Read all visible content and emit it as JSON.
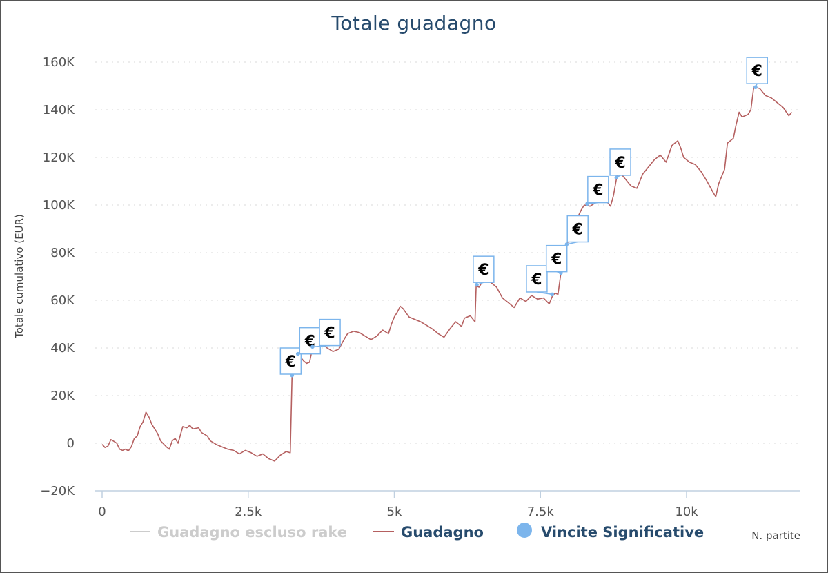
{
  "chart_data": {
    "type": "line",
    "title": "Totale guadagno",
    "ylabel": "Totale cumulativo (EUR)",
    "xlabel": "N. partite",
    "xlim": [
      0,
      11800
    ],
    "ylim": [
      -20000,
      160000
    ],
    "x_ticks": [
      {
        "value": 0,
        "label": "0"
      },
      {
        "value": 2500,
        "label": "2.5k"
      },
      {
        "value": 5000,
        "label": "5k"
      },
      {
        "value": 7500,
        "label": "7.5k"
      },
      {
        "value": 10000,
        "label": "10k"
      }
    ],
    "y_ticks": [
      {
        "value": -20000,
        "label": "−20K"
      },
      {
        "value": 0,
        "label": "0"
      },
      {
        "value": 20000,
        "label": "20K"
      },
      {
        "value": 40000,
        "label": "40K"
      },
      {
        "value": 60000,
        "label": "60K"
      },
      {
        "value": 80000,
        "label": "80K"
      },
      {
        "value": 100000,
        "label": "100K"
      },
      {
        "value": 120000,
        "label": "120K"
      },
      {
        "value": 140000,
        "label": "140K"
      },
      {
        "value": 160000,
        "label": "160K"
      }
    ],
    "grid": true,
    "legend_position": "bottom",
    "series": [
      {
        "name": "Guadagno escluso rake",
        "color": "#cccccc",
        "hidden": true,
        "points": []
      },
      {
        "name": "Guadagno",
        "color": "#b56060",
        "points": [
          [
            0,
            -500
          ],
          [
            50,
            -1800
          ],
          [
            100,
            -1200
          ],
          [
            150,
            1500
          ],
          [
            200,
            800
          ],
          [
            250,
            0
          ],
          [
            300,
            -2500
          ],
          [
            350,
            -3000
          ],
          [
            400,
            -2500
          ],
          [
            450,
            -3200
          ],
          [
            500,
            -1500
          ],
          [
            550,
            2000
          ],
          [
            600,
            3000
          ],
          [
            650,
            7000
          ],
          [
            700,
            9000
          ],
          [
            750,
            13000
          ],
          [
            800,
            11000
          ],
          [
            850,
            8000
          ],
          [
            900,
            6000
          ],
          [
            950,
            4000
          ],
          [
            1000,
            1000
          ],
          [
            1100,
            -1500
          ],
          [
            1150,
            -2500
          ],
          [
            1200,
            1000
          ],
          [
            1250,
            2000
          ],
          [
            1300,
            0
          ],
          [
            1380,
            7000
          ],
          [
            1450,
            6500
          ],
          [
            1500,
            7500
          ],
          [
            1550,
            6000
          ],
          [
            1650,
            6500
          ],
          [
            1700,
            4500
          ],
          [
            1800,
            3000
          ],
          [
            1850,
            1000
          ],
          [
            1950,
            -500
          ],
          [
            2050,
            -1500
          ],
          [
            2150,
            -2500
          ],
          [
            2250,
            -3000
          ],
          [
            2350,
            -4500
          ],
          [
            2450,
            -3000
          ],
          [
            2550,
            -4000
          ],
          [
            2650,
            -5500
          ],
          [
            2750,
            -4500
          ],
          [
            2850,
            -6500
          ],
          [
            2950,
            -7500
          ],
          [
            3050,
            -5000
          ],
          [
            3150,
            -3500
          ],
          [
            3220,
            -4000
          ],
          [
            3250,
            28500
          ],
          [
            3300,
            31000
          ],
          [
            3350,
            37500
          ],
          [
            3400,
            36000
          ],
          [
            3450,
            34500
          ],
          [
            3500,
            33500
          ],
          [
            3550,
            34000
          ],
          [
            3600,
            40000
          ],
          [
            3650,
            41500
          ],
          [
            3700,
            42500
          ],
          [
            3750,
            44000
          ],
          [
            3800,
            41000
          ],
          [
            3850,
            40000
          ],
          [
            3950,
            38500
          ],
          [
            4050,
            39500
          ],
          [
            4150,
            44000
          ],
          [
            4200,
            46000
          ],
          [
            4300,
            47000
          ],
          [
            4400,
            46500
          ],
          [
            4500,
            45000
          ],
          [
            4600,
            43500
          ],
          [
            4700,
            45000
          ],
          [
            4800,
            47500
          ],
          [
            4900,
            46000
          ],
          [
            4950,
            50000
          ],
          [
            5000,
            53000
          ],
          [
            5050,
            55000
          ],
          [
            5100,
            57500
          ],
          [
            5150,
            56500
          ],
          [
            5250,
            53000
          ],
          [
            5350,
            52000
          ],
          [
            5450,
            51000
          ],
          [
            5550,
            49500
          ],
          [
            5650,
            48000
          ],
          [
            5750,
            46000
          ],
          [
            5850,
            44500
          ],
          [
            5950,
            48000
          ],
          [
            6050,
            51000
          ],
          [
            6150,
            49000
          ],
          [
            6200,
            52500
          ],
          [
            6300,
            53500
          ],
          [
            6380,
            51000
          ],
          [
            6400,
            66000
          ],
          [
            6450,
            65500
          ],
          [
            6500,
            67500
          ],
          [
            6550,
            69000
          ],
          [
            6650,
            67500
          ],
          [
            6750,
            65500
          ],
          [
            6850,
            61000
          ],
          [
            6950,
            59000
          ],
          [
            7050,
            57000
          ],
          [
            7150,
            61000
          ],
          [
            7250,
            59500
          ],
          [
            7350,
            62000
          ],
          [
            7450,
            60500
          ],
          [
            7550,
            61000
          ],
          [
            7650,
            58500
          ],
          [
            7700,
            61500
          ],
          [
            7750,
            63000
          ],
          [
            7800,
            62500
          ],
          [
            7850,
            71500
          ],
          [
            7900,
            72500
          ],
          [
            7950,
            82000
          ],
          [
            8000,
            89000
          ],
          [
            8050,
            90500
          ],
          [
            8100,
            93000
          ],
          [
            8150,
            95500
          ],
          [
            8200,
            98000
          ],
          [
            8250,
            100000
          ],
          [
            8350,
            99500
          ],
          [
            8450,
            101000
          ],
          [
            8550,
            103000
          ],
          [
            8650,
            101000
          ],
          [
            8700,
            99500
          ],
          [
            8750,
            104000
          ],
          [
            8800,
            111000
          ],
          [
            8850,
            114000
          ],
          [
            8950,
            111000
          ],
          [
            9050,
            108000
          ],
          [
            9150,
            107000
          ],
          [
            9250,
            113000
          ],
          [
            9350,
            116000
          ],
          [
            9450,
            119000
          ],
          [
            9550,
            121000
          ],
          [
            9650,
            118000
          ],
          [
            9750,
            125000
          ],
          [
            9850,
            127000
          ],
          [
            9900,
            124000
          ],
          [
            9950,
            120000
          ],
          [
            10050,
            118000
          ],
          [
            10150,
            117000
          ],
          [
            10250,
            114000
          ],
          [
            10350,
            110000
          ],
          [
            10450,
            105500
          ],
          [
            10500,
            103500
          ],
          [
            10550,
            109000
          ],
          [
            10650,
            115000
          ],
          [
            10700,
            126000
          ],
          [
            10800,
            128000
          ],
          [
            10850,
            134000
          ],
          [
            10900,
            139000
          ],
          [
            10950,
            137000
          ],
          [
            11050,
            138000
          ],
          [
            11100,
            140000
          ],
          [
            11150,
            149500
          ],
          [
            11250,
            149000
          ],
          [
            11350,
            146000
          ],
          [
            11450,
            145000
          ],
          [
            11550,
            143000
          ],
          [
            11650,
            141000
          ],
          [
            11750,
            137500
          ],
          [
            11800,
            139000
          ]
        ]
      },
      {
        "name": "Vincite Significative",
        "color": "#7cb5ec",
        "points": []
      }
    ],
    "flags": [
      {
        "x": 3250,
        "y": 28500,
        "text": "€",
        "box_x": 3050,
        "box_y": 40000
      },
      {
        "x": 3350,
        "y": 37500,
        "text": "€",
        "box_x": 3380,
        "box_y": 48500
      },
      {
        "x": 3600,
        "y": 40500,
        "text": "€",
        "box_x": 3720,
        "box_y": 52000
      },
      {
        "x": 6410,
        "y": 66500,
        "text": "€",
        "box_x": 6350,
        "box_y": 78500
      },
      {
        "x": 7700,
        "y": 62500,
        "text": "€",
        "box_x": 7260,
        "box_y": 74500
      },
      {
        "x": 7850,
        "y": 71500,
        "text": "€",
        "box_x": 7600,
        "box_y": 83000
      },
      {
        "x": 7950,
        "y": 83500,
        "text": "€",
        "box_x": 7960,
        "box_y": 95500
      },
      {
        "x": 8300,
        "y": 100500,
        "text": "€",
        "box_x": 8310,
        "box_y": 112000
      },
      {
        "x": 8800,
        "y": 111500,
        "text": "€",
        "box_x": 8690,
        "box_y": 123500
      },
      {
        "x": 11180,
        "y": 149500,
        "text": "€",
        "box_x": 11030,
        "box_y": 162000
      }
    ]
  }
}
